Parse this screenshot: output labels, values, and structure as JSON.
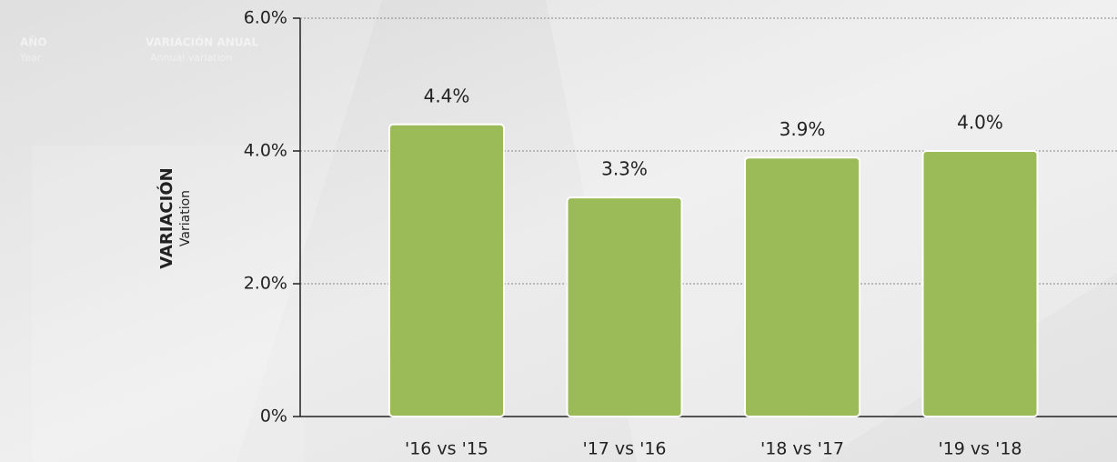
{
  "table_header": {
    "columns": [
      {
        "title": "AÑO",
        "subtitle": "Year"
      },
      {
        "title": "VARIACIÓN ANUAL",
        "subtitle": "Annual variation"
      }
    ]
  },
  "chart_data": {
    "type": "bar",
    "ylabel": "VARIACIÓN",
    "ylabel_sub": "Variation",
    "categories": [
      "'16 vs '15",
      "'17 vs '16",
      "'18 vs '17",
      "'19 vs '18"
    ],
    "values": [
      4.4,
      3.3,
      3.9,
      4.0
    ],
    "value_labels": [
      "4.4%",
      "3.3%",
      "3.9%",
      "4.0%"
    ],
    "color": "#9bbb59",
    "ylim": [
      0,
      6
    ],
    "yticks": [
      {
        "value": 0,
        "label": "0%"
      },
      {
        "value": 2,
        "label": "2.0%"
      },
      {
        "value": 4,
        "label": "4.0%"
      },
      {
        "value": 6,
        "label": "6.0%"
      }
    ],
    "grid": true
  }
}
